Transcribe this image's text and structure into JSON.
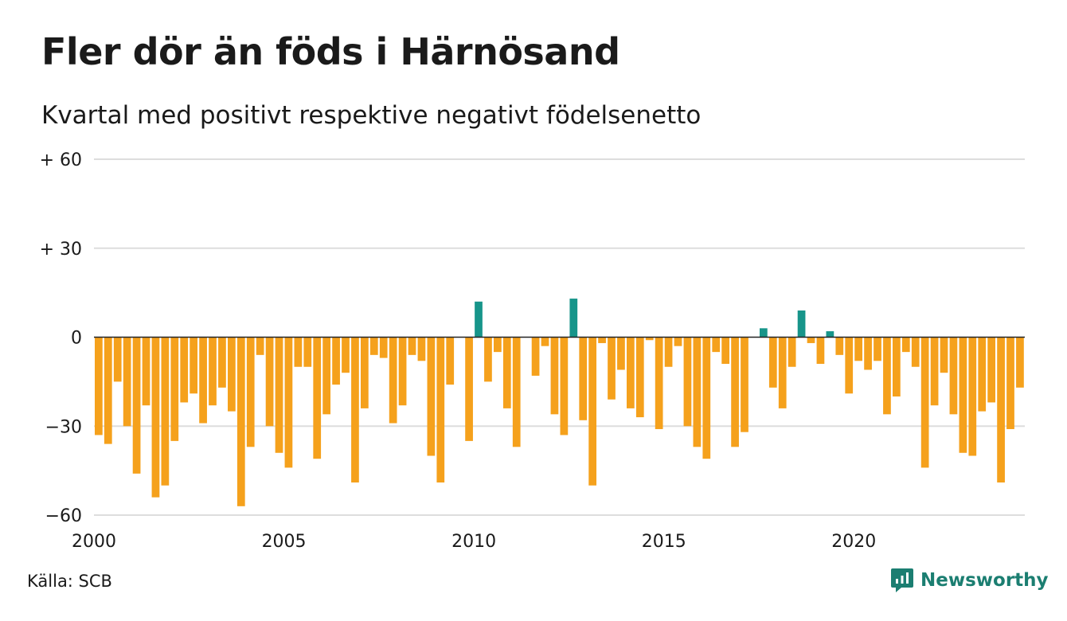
{
  "title": "Fler dör än föds i Härnösand",
  "subtitle": "Kvartal med positivt respektive negativt födelsenetto",
  "source": "Källa: SCB",
  "brand": {
    "name": "Newsworthy",
    "icon": "newsworthy-logo-icon",
    "color": "#1b7e71"
  },
  "colors": {
    "positive": "#17958a",
    "negative": "#f5a11c",
    "grid": "#dddddd",
    "zero_line": "#222222"
  },
  "chart_data": {
    "type": "bar",
    "title": "Fler dör än föds i Härnösand",
    "subtitle": "Kvartal med positivt respektive negativt födelsenetto",
    "xlabel": "",
    "ylabel": "",
    "ylim": [
      -60,
      60
    ],
    "y_ticks": [
      {
        "value": 60,
        "label": "+ 60"
      },
      {
        "value": 30,
        "label": "+ 30"
      },
      {
        "value": 0,
        "label": "0"
      },
      {
        "value": -30,
        "label": "−30"
      },
      {
        "value": -60,
        "label": "−60"
      }
    ],
    "x_ticks": [
      {
        "value": 2000,
        "label": "2000"
      },
      {
        "value": 2005,
        "label": "2005"
      },
      {
        "value": 2010,
        "label": "2010"
      },
      {
        "value": 2015,
        "label": "2015"
      },
      {
        "value": 2020,
        "label": "2020"
      }
    ],
    "x_start": 2000,
    "periods_per_year": 4,
    "grid": true,
    "values": [
      -33,
      -36,
      -15,
      -30,
      -46,
      -23,
      -54,
      -50,
      -35,
      -22,
      -19,
      -29,
      -23,
      -17,
      -25,
      -57,
      -37,
      -6,
      -30,
      -39,
      -44,
      -10,
      -10,
      -41,
      -26,
      -16,
      -12,
      -49,
      -24,
      -6,
      -7,
      -29,
      -23,
      -6,
      -8,
      -40,
      -49,
      -16,
      0,
      -35,
      12,
      -15,
      -5,
      -24,
      -37,
      0,
      -13,
      -3,
      -26,
      -33,
      13,
      -28,
      -50,
      -2,
      -21,
      -11,
      -24,
      -27,
      -1,
      -31,
      -10,
      -3,
      -30,
      -37,
      -41,
      -5,
      -9,
      -37,
      -32,
      0,
      3,
      -17,
      -24,
      -10,
      9,
      -2,
      -9,
      2,
      -6,
      -19,
      -8,
      -11,
      -8,
      -26,
      -20,
      -5,
      -10,
      -44,
      -23,
      -12,
      -26,
      -39,
      -40,
      -25,
      -22,
      -49,
      -31,
      -17
    ]
  }
}
